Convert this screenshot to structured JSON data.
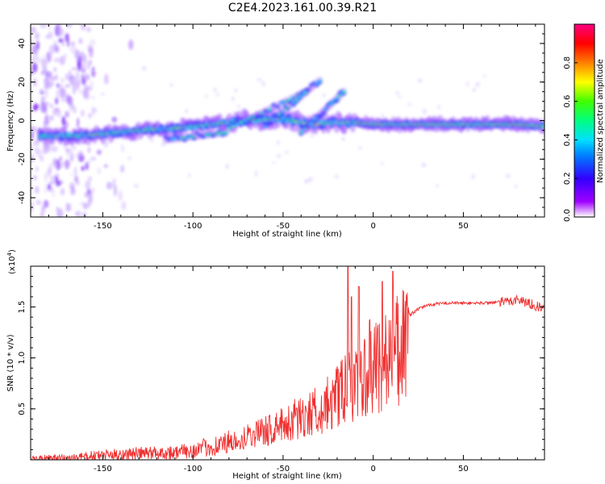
{
  "title": "C2E4.2023.161.00.39.R21",
  "colors": {
    "snr_line": "#f03030",
    "axis": "#000000",
    "spectrogram_floor": "#ffffff"
  },
  "chart_data": [
    {
      "type": "heatmap",
      "name": "spectrogram",
      "xlabel": "Height of straight line (km)",
      "ylabel": "Frequency (Hz)",
      "xlim": [
        -190,
        95
      ],
      "ylim": [
        -50,
        50
      ],
      "xticks": [
        -150,
        -100,
        -50,
        0,
        50
      ],
      "yticks": [
        -40,
        -20,
        0,
        20,
        40
      ],
      "colorbar": {
        "label": "Normalized spectral amplitude",
        "range": [
          0.0,
          1.0
        ],
        "ticks": [
          0.0,
          0.2,
          0.4,
          0.6,
          0.8
        ],
        "colormap": "rainbow"
      },
      "ridge": {
        "x": [
          -180,
          -165,
          -150,
          -130,
          -110,
          -90,
          -70,
          -50,
          -35,
          -20,
          -10,
          0,
          20,
          40,
          60,
          80,
          95
        ],
        "y": [
          -8,
          -8,
          -7,
          -5,
          -4,
          -2,
          0,
          1,
          -2,
          -1,
          -1,
          -2,
          -2,
          -2,
          -2,
          -2,
          -3
        ]
      }
    },
    {
      "type": "line",
      "name": "snr",
      "xlabel": "Height of straight line (km)",
      "ylabel": "SNR (10 * v/v)",
      "yscale_label": "(x10",
      "yscale_exp": "4",
      "yscale_close": ")",
      "xlim": [
        -190,
        95
      ],
      "ylim": [
        0,
        1.9
      ],
      "xticks": [
        -150,
        -100,
        -50,
        0,
        50
      ],
      "yticks": [
        0.5,
        1.0,
        1.5
      ],
      "envelope": {
        "x": [
          -190,
          -170,
          -150,
          -130,
          -110,
          -100,
          -90,
          -80,
          -70,
          -60,
          -50,
          -40,
          -30,
          -25,
          -20,
          -15,
          -12,
          -10,
          -5,
          0,
          5,
          10,
          15,
          20,
          25,
          30,
          40,
          50,
          60,
          70,
          75,
          80,
          85,
          90,
          95
        ],
        "y": [
          0.01,
          0.02,
          0.05,
          0.07,
          0.08,
          0.1,
          0.14,
          0.18,
          0.28,
          0.33,
          0.4,
          0.5,
          0.58,
          0.64,
          0.72,
          0.8,
          0.85,
          0.9,
          1.0,
          1.1,
          1.15,
          1.2,
          1.3,
          1.42,
          1.48,
          1.52,
          1.54,
          1.54,
          1.54,
          1.55,
          1.56,
          1.58,
          1.55,
          1.52,
          1.48
        ]
      },
      "peaks": {
        "x": [
          -14,
          -12,
          -8,
          5,
          11
        ],
        "y": [
          1.9,
          1.6,
          1.7,
          1.75,
          1.85
        ]
      }
    }
  ]
}
